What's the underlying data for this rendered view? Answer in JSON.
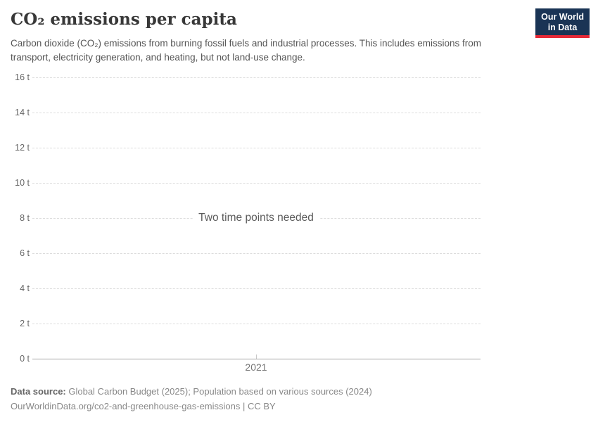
{
  "header": {
    "title": "CO₂ emissions per capita",
    "subtitle": "Carbon dioxide (CO₂) emissions from burning fossil fuels and industrial processes. This includes emissions from transport, electricity generation, and heating, but not land-use change.",
    "logo": {
      "line1": "Our World",
      "line2": "in Data",
      "bg_color": "#1a3455",
      "stripe_color": "#e62937"
    }
  },
  "chart_data": {
    "type": "line",
    "title": "CO₂ emissions per capita",
    "unit": "t",
    "ylim": [
      0,
      16
    ],
    "ytick_interval": 2,
    "yticks": [
      "16 t",
      "14 t",
      "12 t",
      "10 t",
      "8 t",
      "6 t",
      "4 t",
      "2 t",
      "0 t"
    ],
    "xticks": [
      "2021"
    ],
    "series": [],
    "empty_message": "Two time points needed",
    "grid": "horizontal-dashed",
    "legend": "none",
    "colors": {
      "gridline": "#dcdcdc",
      "zero_axis": "#a3a3a3",
      "tick_label": "#666666"
    }
  },
  "footer": {
    "source_label": "Data source:",
    "source_text": " Global Carbon Budget (2025); Population based on various sources (2024)",
    "citation": "OurWorldinData.org/co2-and-greenhouse-gas-emissions | CC BY"
  }
}
